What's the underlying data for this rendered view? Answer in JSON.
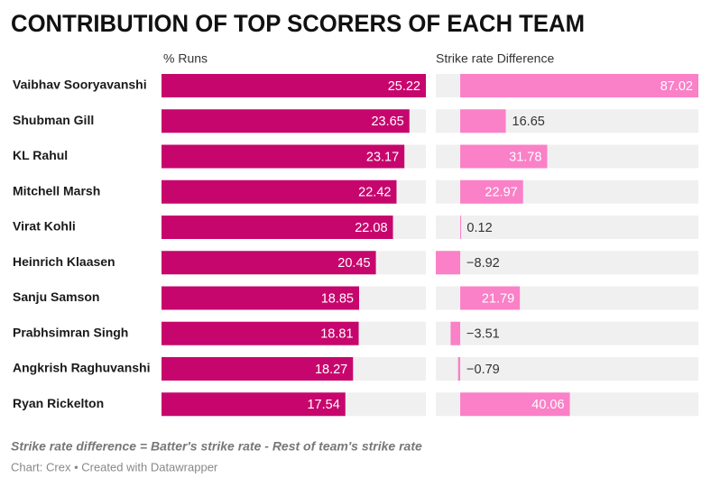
{
  "title": "CONTRIBUTION OF TOP SCORERS OF EACH TEAM",
  "chart_data": [
    {
      "type": "bar",
      "title": "% Runs",
      "color": "#c7066d",
      "categories": [
        "Vaibhav Sooryavanshi",
        "Shubman Gill",
        "KL Rahul",
        "Mitchell Marsh",
        "Virat Kohli",
        "Heinrich Klaasen",
        "Sanju Samson",
        "Prabhsimran Singh",
        "Angkrish Raghuvanshi",
        "Ryan Rickelton"
      ],
      "values": [
        25.22,
        23.65,
        23.17,
        22.42,
        22.08,
        20.45,
        18.85,
        18.81,
        18.27,
        17.54
      ]
    },
    {
      "type": "bar",
      "title": "Strike rate Difference",
      "color": "#fa80c7",
      "values": [
        87.02,
        16.65,
        31.78,
        22.97,
        0.12,
        -8.92,
        21.79,
        -3.51,
        -0.79,
        40.06
      ],
      "value_labels": [
        "87.02",
        "16.65",
        "31.78",
        "22.97",
        "0.12",
        "−8.92",
        "21.79",
        "−3.51",
        "−0.79",
        "40.06"
      ]
    }
  ],
  "note": "Strike rate difference = Batter's strike rate - Rest of team's strike rate",
  "credit": "Chart: Crex • Created with Datawrapper"
}
